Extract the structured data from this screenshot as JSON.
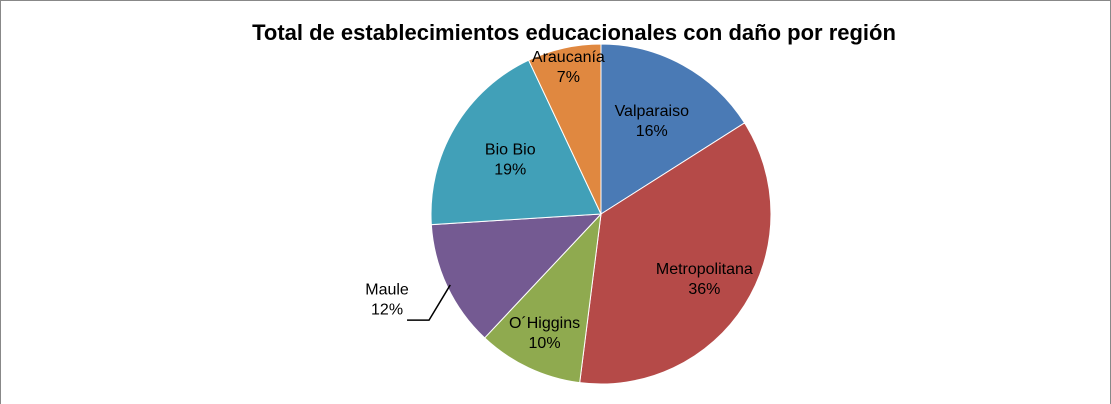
{
  "chart_data": {
    "type": "pie",
    "title": "Total de establecimientos educacionales con daño por región",
    "categories": [
      "Valparaiso",
      "Metropolitana",
      "O´Higgins",
      "Maule",
      "Bio Bio",
      "Araucanía"
    ],
    "values": [
      16,
      36,
      10,
      12,
      19,
      7
    ],
    "value_labels": [
      "16%",
      "36%",
      "10%",
      "12%",
      "19%",
      "7%"
    ],
    "colors": [
      "#4a7ab5",
      "#b54a48",
      "#8faa4f",
      "#745a92",
      "#41a0b8",
      "#e08840"
    ]
  }
}
